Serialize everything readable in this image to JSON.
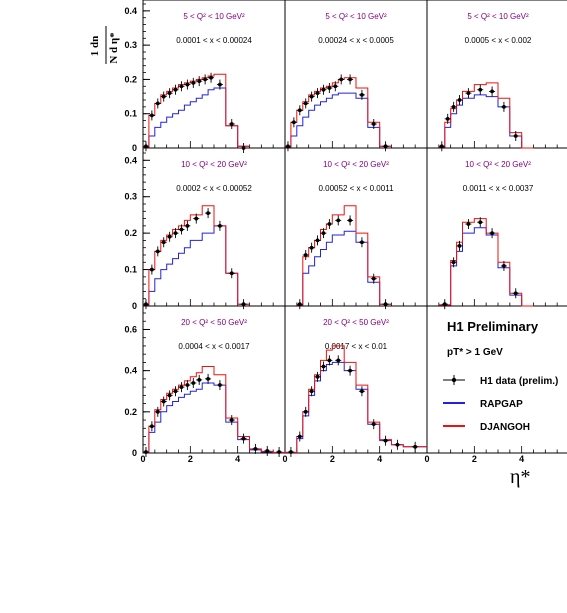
{
  "chart_data": {
    "type": "line",
    "xlabel": "η*",
    "ylabel_num": "1  dn",
    "ylabel_den": "N d η*",
    "xlim": [
      0,
      6
    ],
    "x_ticks": [
      "0",
      "2",
      "4"
    ],
    "rows": [
      {
        "ylim": [
          0,
          0.42
        ],
        "y_ticks": [
          "0",
          "0.1",
          "0.2",
          "0.3",
          "0.4"
        ]
      },
      {
        "ylim": [
          0,
          0.42
        ],
        "y_ticks": [
          "0",
          "0.1",
          "0.2",
          "0.3",
          "0.4"
        ]
      },
      {
        "ylim": [
          0,
          0.68
        ],
        "y_ticks": [
          "0",
          "0.2",
          "0.4",
          "0.6"
        ]
      }
    ],
    "panels": [
      {
        "row": 0,
        "col": 0,
        "q2": "5  < Q² < 10 GeV²",
        "xbin": "0.0001 < x < 0.00024",
        "edges": [
          0.0,
          0.25,
          0.5,
          0.75,
          1.0,
          1.25,
          1.5,
          1.75,
          2.0,
          2.25,
          2.5,
          2.75,
          3.0,
          3.5,
          4.0,
          4.5
        ],
        "data_x": [
          0.125,
          0.375,
          0.625,
          0.875,
          1.125,
          1.375,
          1.625,
          1.875,
          2.125,
          2.375,
          2.625,
          2.875,
          3.25,
          3.75,
          4.25
        ],
        "data_y": [
          0.005,
          0.095,
          0.13,
          0.15,
          0.16,
          0.17,
          0.18,
          0.185,
          0.19,
          0.195,
          0.2,
          0.205,
          0.185,
          0.07,
          0.0
        ],
        "rapgap": [
          0.003,
          0.035,
          0.06,
          0.075,
          0.09,
          0.1,
          0.11,
          0.125,
          0.135,
          0.145,
          0.155,
          0.17,
          0.175,
          0.065,
          0.005
        ],
        "djangoh": [
          0.003,
          0.095,
          0.13,
          0.155,
          0.165,
          0.175,
          0.185,
          0.19,
          0.195,
          0.2,
          0.205,
          0.21,
          0.215,
          0.065,
          0.005
        ]
      },
      {
        "row": 0,
        "col": 1,
        "q2": "5  < Q² < 10 GeV²",
        "xbin": "0.00024 < x < 0.0005",
        "edges": [
          0.0,
          0.25,
          0.5,
          0.75,
          1.0,
          1.25,
          1.5,
          1.75,
          2.0,
          2.25,
          2.5,
          3.0,
          3.5,
          4.0,
          4.5
        ],
        "data_x": [
          0.125,
          0.375,
          0.625,
          0.875,
          1.125,
          1.375,
          1.625,
          1.875,
          2.125,
          2.375,
          2.75,
          3.25,
          3.75,
          4.25
        ],
        "data_y": [
          0.005,
          0.075,
          0.11,
          0.13,
          0.15,
          0.16,
          0.17,
          0.175,
          0.18,
          0.2,
          0.2,
          0.155,
          0.07,
          0.005
        ],
        "rapgap": [
          0.003,
          0.035,
          0.065,
          0.09,
          0.11,
          0.125,
          0.135,
          0.145,
          0.155,
          0.16,
          0.16,
          0.145,
          0.06,
          0.005
        ],
        "djangoh": [
          0.003,
          0.075,
          0.11,
          0.135,
          0.155,
          0.165,
          0.175,
          0.18,
          0.19,
          0.2,
          0.205,
          0.175,
          0.075,
          0.005
        ]
      },
      {
        "row": 0,
        "col": 2,
        "q2": "5  < Q² < 10 GeV²",
        "xbin": "0.0005 < x < 0.002",
        "edges": [
          0.5,
          0.75,
          1.0,
          1.25,
          1.5,
          2.0,
          2.5,
          3.0,
          3.5,
          4.0,
          4.5
        ],
        "data_x": [
          0.625,
          0.875,
          1.125,
          1.375,
          1.75,
          2.25,
          2.75,
          3.25,
          3.75
        ],
        "data_y": [
          0.005,
          0.085,
          0.12,
          0.14,
          0.16,
          0.17,
          0.165,
          0.12,
          0.035
        ],
        "rapgap": [
          0.003,
          0.06,
          0.1,
          0.125,
          0.145,
          0.155,
          0.15,
          0.12,
          0.035,
          0.0
        ],
        "djangoh": [
          0.003,
          0.075,
          0.115,
          0.14,
          0.165,
          0.185,
          0.19,
          0.145,
          0.045,
          0.0
        ]
      },
      {
        "row": 1,
        "col": 0,
        "q2": "10 < Q² < 20 GeV²",
        "xbin": "0.0002 < x < 0.00052",
        "edges": [
          0.0,
          0.25,
          0.5,
          0.75,
          1.0,
          1.25,
          1.5,
          1.75,
          2.0,
          2.5,
          3.0,
          3.5,
          4.0,
          4.5
        ],
        "data_x": [
          0.125,
          0.375,
          0.625,
          0.875,
          1.125,
          1.375,
          1.625,
          1.875,
          2.25,
          2.75,
          3.25,
          3.75,
          4.25
        ],
        "data_y": [
          0.005,
          0.1,
          0.15,
          0.175,
          0.19,
          0.2,
          0.21,
          0.22,
          0.24,
          0.255,
          0.22,
          0.09,
          0.005
        ],
        "rapgap": [
          0.003,
          0.04,
          0.075,
          0.1,
          0.115,
          0.13,
          0.145,
          0.16,
          0.18,
          0.2,
          0.22,
          0.09,
          0.005
        ],
        "djangoh": [
          0.003,
          0.1,
          0.15,
          0.18,
          0.195,
          0.21,
          0.22,
          0.235,
          0.25,
          0.275,
          0.22,
          0.09,
          0.005
        ]
      },
      {
        "row": 1,
        "col": 1,
        "q2": "10 < Q² < 20 GeV²",
        "xbin": "0.00052 < x < 0.0011",
        "edges": [
          0.5,
          0.75,
          1.0,
          1.25,
          1.5,
          1.75,
          2.0,
          2.5,
          3.0,
          3.5,
          4.0,
          4.5
        ],
        "data_x": [
          0.625,
          0.875,
          1.125,
          1.375,
          1.625,
          1.875,
          2.25,
          2.75,
          3.25,
          3.75,
          4.25
        ],
        "data_y": [
          0.005,
          0.14,
          0.16,
          0.18,
          0.2,
          0.225,
          0.235,
          0.235,
          0.175,
          0.075,
          0.005
        ],
        "rapgap": [
          0.003,
          0.09,
          0.11,
          0.135,
          0.155,
          0.175,
          0.195,
          0.205,
          0.175,
          0.065,
          0.005
        ],
        "djangoh": [
          0.003,
          0.135,
          0.16,
          0.18,
          0.21,
          0.225,
          0.25,
          0.275,
          0.2,
          0.08,
          0.005
        ]
      },
      {
        "row": 1,
        "col": 2,
        "q2": "10 < Q² < 20 GeV²",
        "xbin": "0.0011 < x < 0.0037",
        "edges": [
          0.5,
          1.0,
          1.25,
          1.5,
          2.0,
          2.5,
          3.0,
          3.5,
          4.0,
          4.5
        ],
        "data_x": [
          0.75,
          1.125,
          1.375,
          1.75,
          2.25,
          2.75,
          3.25,
          3.75
        ],
        "data_y": [
          0.005,
          0.12,
          0.165,
          0.225,
          0.23,
          0.2,
          0.11,
          0.035
        ],
        "rapgap": [
          0.003,
          0.11,
          0.15,
          0.2,
          0.215,
          0.195,
          0.105,
          0.03,
          0.0
        ],
        "djangoh": [
          0.003,
          0.125,
          0.175,
          0.23,
          0.24,
          0.2,
          0.12,
          0.035,
          0.0
        ]
      },
      {
        "row": 2,
        "col": 0,
        "q2": "20 < Q² < 50 GeV²",
        "xbin": "0.0004 < x < 0.0017",
        "edges": [
          0.0,
          0.25,
          0.5,
          0.75,
          1.0,
          1.25,
          1.5,
          1.75,
          2.0,
          2.25,
          2.5,
          3.0,
          3.5,
          4.0,
          4.5,
          5.0,
          5.5,
          6.0
        ],
        "data_x": [
          0.125,
          0.375,
          0.625,
          0.875,
          1.125,
          1.375,
          1.625,
          1.875,
          2.125,
          2.375,
          2.75,
          3.25,
          3.75,
          4.25,
          4.75,
          5.25,
          5.75
        ],
        "data_y": [
          0.005,
          0.13,
          0.2,
          0.25,
          0.28,
          0.3,
          0.32,
          0.33,
          0.34,
          0.355,
          0.36,
          0.33,
          0.16,
          0.07,
          0.02,
          0.01,
          0.005
        ],
        "rapgap": [
          0.003,
          0.1,
          0.15,
          0.2,
          0.23,
          0.25,
          0.27,
          0.285,
          0.3,
          0.31,
          0.34,
          0.33,
          0.15,
          0.065,
          0.015,
          0.005,
          0.002
        ],
        "djangoh": [
          0.003,
          0.13,
          0.21,
          0.26,
          0.29,
          0.31,
          0.33,
          0.35,
          0.37,
          0.39,
          0.42,
          0.38,
          0.17,
          0.08,
          0.02,
          0.008,
          0.003
        ]
      },
      {
        "row": 2,
        "col": 1,
        "q2": "20 < Q² < 50 GeV²",
        "xbin": "0.0017 < x < 0.01",
        "edges": [
          0.0,
          0.5,
          0.75,
          1.0,
          1.25,
          1.5,
          1.75,
          2.0,
          2.5,
          3.0,
          3.5,
          4.0,
          4.5,
          5.0,
          6.0
        ],
        "data_x": [
          0.25,
          0.625,
          0.875,
          1.125,
          1.375,
          1.625,
          1.875,
          2.25,
          2.75,
          3.25,
          3.75,
          4.25,
          4.75,
          5.5
        ],
        "data_y": [
          0.005,
          0.08,
          0.2,
          0.3,
          0.37,
          0.42,
          0.45,
          0.45,
          0.4,
          0.3,
          0.14,
          0.06,
          0.04,
          0.03
        ],
        "rapgap": [
          0.003,
          0.07,
          0.18,
          0.28,
          0.35,
          0.4,
          0.43,
          0.44,
          0.4,
          0.31,
          0.14,
          0.06,
          0.04,
          0.03
        ],
        "djangoh": [
          0.003,
          0.08,
          0.2,
          0.31,
          0.38,
          0.45,
          0.5,
          0.52,
          0.44,
          0.33,
          0.15,
          0.065,
          0.04,
          0.03
        ]
      }
    ],
    "legend": {
      "title": "H1 Preliminary",
      "cut": "pT* > 1 GeV",
      "entries": [
        {
          "name": "H1 data (prelim.)",
          "color": "#000000",
          "style": "marker"
        },
        {
          "name": "RAPGAP",
          "color": "#2222dd",
          "style": "line"
        },
        {
          "name": "DJANGOH",
          "color": "#ee1111",
          "style": "line"
        }
      ]
    }
  }
}
